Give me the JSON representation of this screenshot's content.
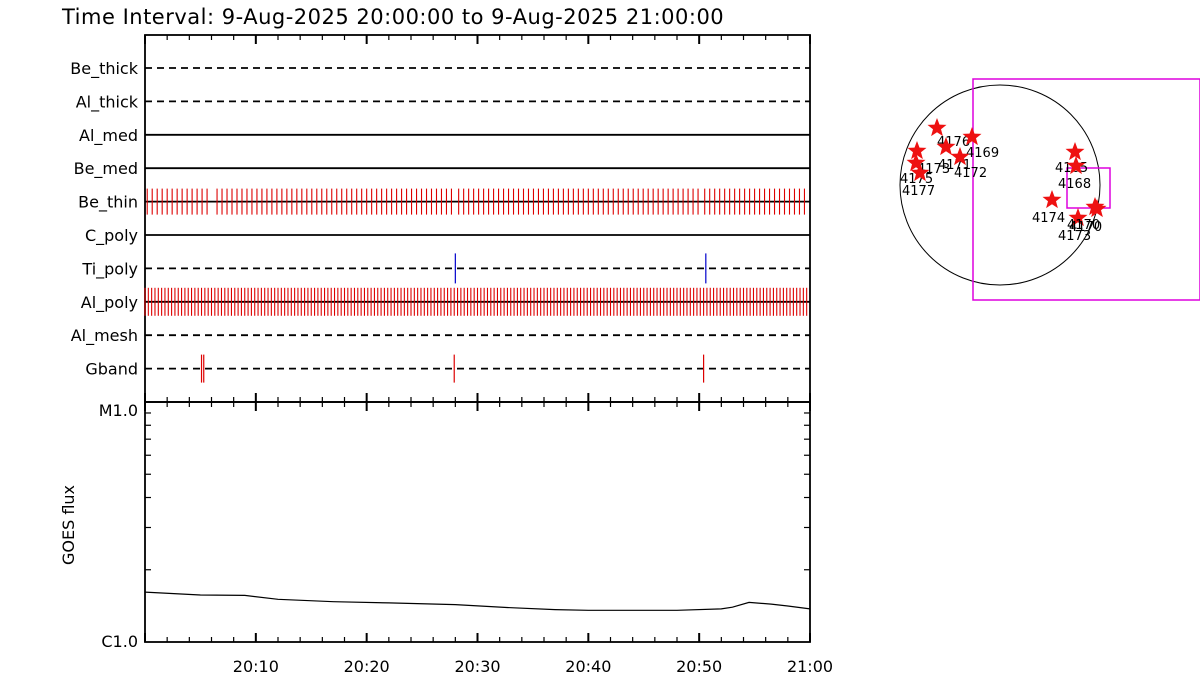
{
  "title": "Time Interval:  9-Aug-2025 20:00:00 to  9-Aug-2025 21:00:00",
  "colors": {
    "axis": "#000000",
    "attenuator_tick": "#dd0000",
    "ti_tick": "#0000cc",
    "goes_line": "#000000",
    "box": "#dd00dd",
    "star": "#ee1111"
  },
  "chart_data": [
    {
      "type": "timeline",
      "x_range": [
        "20:00",
        "21:00"
      ],
      "x_ticks": [
        "20:10",
        "20:20",
        "20:30",
        "20:40",
        "20:50",
        "21:00"
      ],
      "rows": [
        {
          "name": "Be_thick",
          "style": "dashed",
          "events": []
        },
        {
          "name": "Al_thick",
          "style": "dashed",
          "events": []
        },
        {
          "name": "Al_med",
          "style": "solid",
          "events": []
        },
        {
          "name": "Be_med",
          "style": "solid",
          "events": []
        },
        {
          "name": "Be_thin",
          "style": "solid",
          "color": "#dd0000",
          "dense_segments": [
            [
              0.2,
              5.9
            ],
            [
              6.5,
              28.0
            ],
            [
              28.3,
              50.2
            ],
            [
              50.5,
              59.9
            ]
          ],
          "dense_step_min": 0.45,
          "tick_half_height": 13
        },
        {
          "name": "C_poly",
          "style": "solid",
          "events": []
        },
        {
          "name": "Ti_poly",
          "style": "dashed",
          "color": "#0000cc",
          "events": [
            28.0,
            50.6
          ],
          "tick_half_height": 15
        },
        {
          "name": "Al_poly",
          "style": "solid",
          "color": "#dd0000",
          "dense_segments": [
            [
              0.0,
              59.9
            ]
          ],
          "dense_step_min": 0.3,
          "tick_half_height": 14
        },
        {
          "name": "Al_mesh",
          "style": "dashed",
          "events": []
        },
        {
          "name": "Gband",
          "style": "dashed",
          "color": "#dd0000",
          "events": [
            5.1,
            5.3,
            27.9,
            50.4
          ],
          "tick_half_height": 14
        }
      ]
    },
    {
      "type": "line",
      "ylabel": "GOES flux",
      "y_ticks": [
        "M1.0",
        "C1.0"
      ],
      "y_scale": "log",
      "x_range": [
        "20:00",
        "21:00"
      ],
      "x_ticks": [
        "20:10",
        "20:20",
        "20:30",
        "20:40",
        "20:50",
        "21:00"
      ],
      "series": [
        {
          "x_min": [
            0,
            5,
            9,
            12,
            17,
            22,
            28,
            33,
            37,
            40,
            44,
            48,
            52,
            53,
            54.5,
            56.5,
            58,
            60
          ],
          "y_decade": [
            0.208,
            0.196,
            0.194,
            0.178,
            0.168,
            0.163,
            0.156,
            0.143,
            0.135,
            0.132,
            0.132,
            0.132,
            0.138,
            0.145,
            0.165,
            0.158,
            0.15,
            0.138
          ]
        }
      ]
    },
    {
      "type": "scatter",
      "disk": true,
      "points": [
        {
          "label": "4176",
          "dx": -0.63,
          "dy": -0.57
        },
        {
          "label": "4171",
          "dx": -0.54,
          "dy": -0.38
        },
        {
          "label": "4169",
          "dx": -0.28,
          "dy": -0.48
        },
        {
          "label": "4172",
          "dx": -0.4,
          "dy": -0.28
        },
        {
          "label": "4173",
          "dx": -0.83,
          "dy": -0.34
        },
        {
          "label": "4175",
          "dx": -0.84,
          "dy": -0.22
        },
        {
          "label": "4177",
          "dx": -0.8,
          "dy": -0.12
        },
        {
          "label": "4165",
          "dx": 0.75,
          "dy": -0.33
        },
        {
          "label": "4168",
          "dx": 0.76,
          "dy": -0.19
        },
        {
          "label": "4174",
          "dx": 0.52,
          "dy": 0.15
        },
        {
          "label": "4173",
          "dx": 0.78,
          "dy": 0.33
        },
        {
          "label": "4170",
          "dx": 0.97,
          "dy": 0.24
        },
        {
          "label": "4170",
          "dx": 0.95,
          "dy": 0.22
        }
      ],
      "label_offsets": {
        "4176": [
          0,
          18
        ],
        "4171": [
          -8,
          22
        ],
        "4169": [
          -6,
          20
        ],
        "4172": [
          -6,
          20
        ],
        "4173_a": [
          0,
          22
        ],
        "4175": [
          -16,
          20
        ],
        "4177": [
          -18,
          22
        ],
        "4165": [
          -20,
          20
        ],
        "4168": [
          -18,
          22
        ],
        "4174": [
          -20,
          22
        ],
        "4173_b": [
          -20,
          22
        ],
        "4170": [
          -28,
          22
        ]
      }
    }
  ]
}
